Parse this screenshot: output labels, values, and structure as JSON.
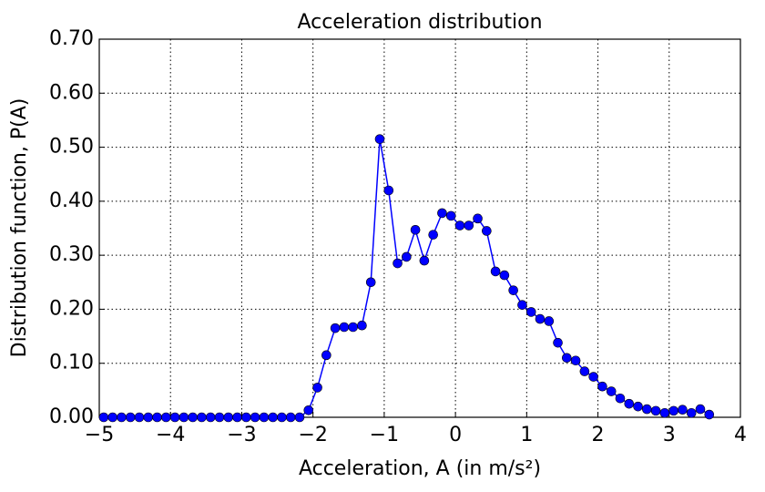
{
  "chart_data": {
    "type": "line",
    "title": "Acceleration distribution",
    "x_label": "Acceleration, A  (in m/s²)",
    "y_label": "Distribution function, P(A)",
    "x": [
      -4.9375,
      -4.8125,
      -4.6875,
      -4.5625,
      -4.4375,
      -4.3125,
      -4.1875,
      -4.0625,
      -3.9375,
      -3.8125,
      -3.6875,
      -3.5625,
      -3.4375,
      -3.3125,
      -3.1875,
      -3.0625,
      -2.9375,
      -2.8125,
      -2.6875,
      -2.5625,
      -2.4375,
      -2.3125,
      -2.1875,
      -2.0625,
      -1.9375,
      -1.8125,
      -1.6875,
      -1.5625,
      -1.4375,
      -1.3125,
      -1.1875,
      -1.0625,
      -0.9375,
      -0.8125,
      -0.6875,
      -0.5625,
      -0.4375,
      -0.3125,
      -0.1875,
      -0.0625,
      0.0625,
      0.1875,
      0.3125,
      0.4375,
      0.5625,
      0.6875,
      0.8125,
      0.9375,
      1.0625,
      1.1875,
      1.3125,
      1.4375,
      1.5625,
      1.6875,
      1.8125,
      1.9375,
      2.0625,
      2.1875,
      2.3125,
      2.4375,
      2.5625,
      2.6875,
      2.8125,
      2.9375,
      3.0625,
      3.1875,
      3.3125,
      3.4375,
      3.5625
    ],
    "series": [
      {
        "color": "#0000ff",
        "values": [
          0,
          0,
          0,
          0,
          0,
          0,
          0,
          0,
          0,
          0,
          0,
          0,
          0,
          0,
          0,
          0,
          0,
          0,
          0,
          0,
          0,
          0,
          0,
          0.013,
          0.055,
          0.115,
          0.165,
          0.167,
          0.167,
          0.17,
          0.25,
          0.515,
          0.42,
          0.285,
          0.297,
          0.347,
          0.29,
          0.338,
          0.378,
          0.373,
          0.355,
          0.355,
          0.368,
          0.345,
          0.27,
          0.263,
          0.235,
          0.208,
          0.195,
          0.182,
          0.178,
          0.138,
          0.11,
          0.105,
          0.085,
          0.075,
          0.057,
          0.048,
          0.035,
          0.025,
          0.02,
          0.015,
          0.012,
          0.008,
          0.012,
          0.014,
          0.008,
          0.015,
          0.005
        ]
      }
    ],
    "xlim": [
      -5,
      4
    ],
    "xticks": [
      {
        "value": -5,
        "label": "−5"
      },
      {
        "value": -4,
        "label": "−4"
      },
      {
        "value": -3,
        "label": "−3"
      },
      {
        "value": -2,
        "label": "−2"
      },
      {
        "value": -1,
        "label": "−1"
      },
      0,
      1,
      2,
      3,
      4
    ],
    "ylim": [
      0,
      0.7
    ],
    "yticks": [
      {
        "value": 0,
        "label": "0.00"
      },
      {
        "value": 0.1,
        "label": "0.10"
      },
      {
        "value": 0.2,
        "label": "0.20"
      },
      {
        "value": 0.3,
        "label": "0.30"
      },
      {
        "value": 0.4,
        "label": "0.40"
      },
      {
        "value": 0.5,
        "label": "0.50"
      },
      {
        "value": 0.6,
        "label": "0.60"
      },
      {
        "value": 0.7,
        "label": "0.70"
      }
    ],
    "grid": true
  }
}
